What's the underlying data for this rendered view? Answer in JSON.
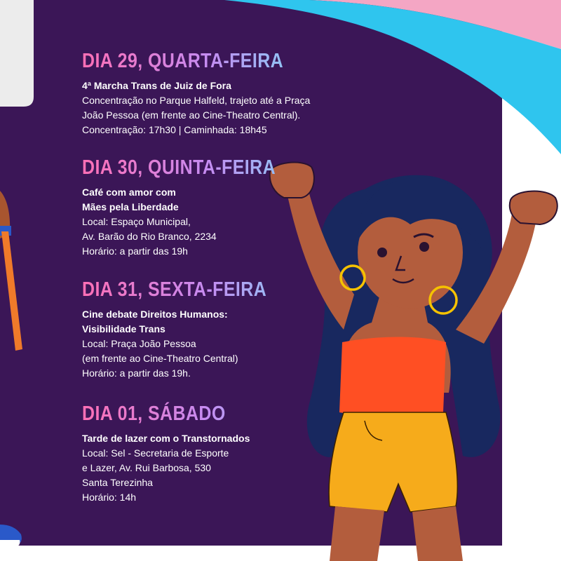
{
  "colors": {
    "panel": "#3b1657",
    "accent_pink": "#f4a6c4",
    "accent_blue": "#2fc5ee",
    "skin": "#b35d3d",
    "hair": "#18285f",
    "top": "#ff4f23",
    "shorts": "#f6ab1b"
  },
  "days": [
    {
      "title": "DIA 29, QUARTA-FEIRA",
      "event": [
        "4ª Marcha Trans de Juiz de Fora"
      ],
      "details": [
        "Concentração no Parque Halfeld, trajeto até a Praça",
        "João Pessoa (em frente ao Cine-Theatro Central).",
        "Concentração: 17h30 | Caminhada: 18h45"
      ]
    },
    {
      "title": "DIA 30, QUINTA-FEIRA",
      "event": [
        "Café com amor com",
        "Mães pela Liberdade"
      ],
      "details": [
        "Local: Espaço Municipal,",
        "Av. Barão do Rio Branco, 2234",
        "Horário: a partir das 19h"
      ]
    },
    {
      "title": "DIA 31, SEXTA-FEIRA",
      "event": [
        "Cine debate Direitos Humanos:",
        "Visibilidade Trans"
      ],
      "details": [
        "Local: Praça João Pessoa",
        "(em frente ao Cine-Theatro Central)",
        "Horário: a partir das 19h."
      ]
    },
    {
      "title": "DIA 01, SÁBADO",
      "event": [
        "Tarde de lazer com o Transtornados"
      ],
      "details": [
        "Local: Sel - Secretaria de Esporte",
        "e Lazer, Av. Rui Barbosa, 530",
        "Santa Terezinha",
        "Horário: 14h"
      ]
    }
  ]
}
